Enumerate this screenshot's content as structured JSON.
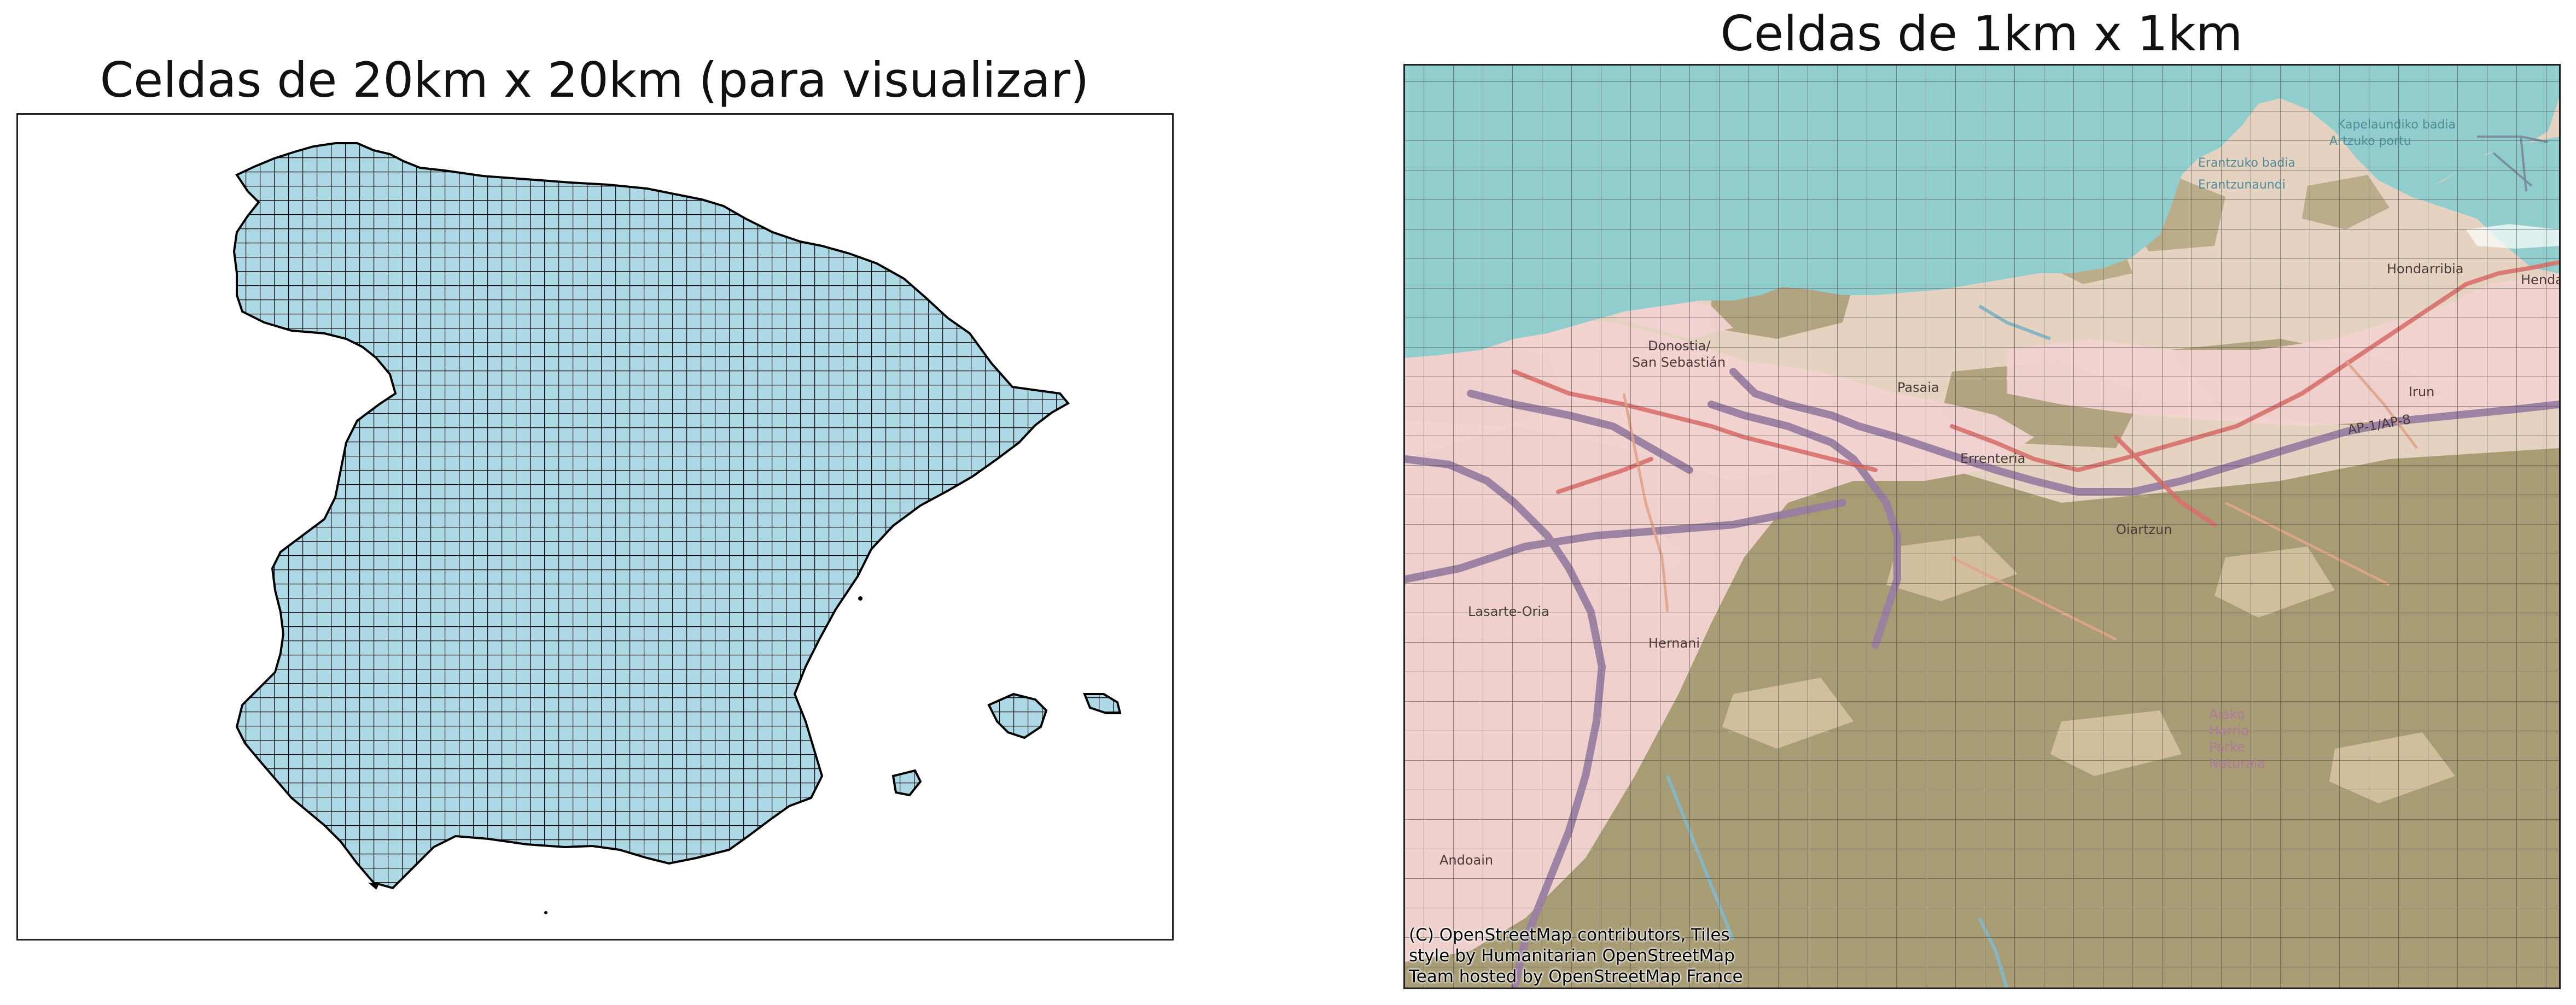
{
  "left_panel": {
    "title": "Celdas de 20km x 20km (para visualizar)",
    "fill_color": "#add8e6",
    "edge_color": "#000000"
  },
  "right_panel": {
    "title": "Celdas de 1km x 1km",
    "grid_color": "#555555",
    "attribution": [
      "(C) OpenStreetMap contributors, Tiles",
      "style by Humanitarian OpenStreetMap",
      "Team hosted by OpenStreetMap France"
    ],
    "map_labels": {
      "donostia": "Donostia/",
      "san_sebastian": "San Sebastián",
      "pasaia": "Pasaia",
      "errenteria": "Errenteria",
      "oiartzun": "Oiartzun",
      "lasarte": "Lasarte-Oria",
      "hernani": "Hernani",
      "andoain": "Andoain",
      "hondarribia": "Hondarribia",
      "irun": "Irun",
      "hendaye": "Hendaye",
      "highway": "AP-1/AP-8",
      "park_1": "Aiako",
      "park_2": "Harria",
      "park_3": "Parke",
      "park_4": "Naturala",
      "sea_1": "Kapelaundiko badia",
      "sea_2": "Artzuko portu",
      "sea_3": "Erantzuko badia",
      "sea_4": "Erantzunaundi"
    },
    "colors": {
      "sea": "#92cdcd",
      "land": "#ead3c2",
      "forest": "#a89c74",
      "urban": "#f3d2d0",
      "roads_major": "#9a7ea2",
      "roads_primary": "#d86a66"
    }
  }
}
